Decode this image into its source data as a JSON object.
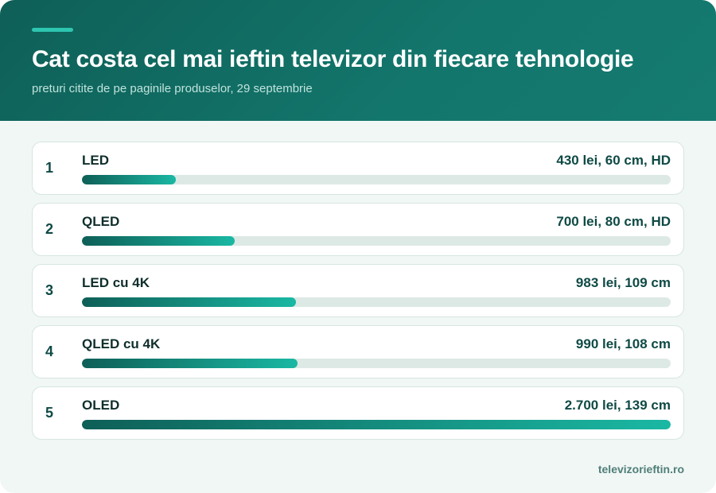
{
  "header": {
    "title": "Cat costa cel mai ieftin televizor din fiecare tehnologie",
    "subtitle": "preturi citite de pe paginile produselor, 29 septembrie"
  },
  "footer": {
    "source": "televizorieftin.ro"
  },
  "colors": {
    "header_start": "#0e5f57",
    "header_end": "#157a70",
    "accent": "#2dc6b0",
    "bar_start": "#0e5f57",
    "bar_end": "#1ab8a3",
    "track": "#dde9e5",
    "background": "#f1f7f5"
  },
  "chart_data": {
    "type": "bar",
    "orientation": "horizontal",
    "title": "Cat costa cel mai ieftin televizor din fiecare tehnologie",
    "subtitle": "preturi citite de pe paginile produselor, 29 septembrie",
    "unit": "lei",
    "xlim": [
      0,
      2700
    ],
    "categories": [
      "LED",
      "QLED",
      "LED cu 4K",
      "QLED cu 4K",
      "OLED"
    ],
    "ranks": [
      "1",
      "2",
      "3",
      "4",
      "5"
    ],
    "values": [
      430,
      700,
      983,
      990,
      2700
    ],
    "labels": [
      "430 lei, 60 cm, HD",
      "700 lei, 80 cm, HD",
      "983 lei, 109 cm",
      "990 lei, 108 cm",
      "2.700 lei, 139 cm"
    ]
  }
}
